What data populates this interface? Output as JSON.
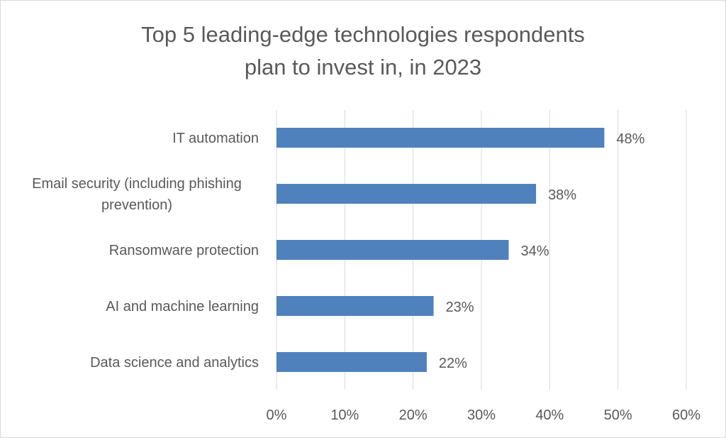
{
  "chart_data": {
    "type": "bar",
    "orientation": "horizontal",
    "title": [
      "Top 5 leading-edge technologies respondents",
      "plan to invest in, in 2023"
    ],
    "categories": [
      [
        "IT automation"
      ],
      [
        "Email security (including phishing",
        "prevention)"
      ],
      [
        "Ransomware protection"
      ],
      [
        "AI and machine learning"
      ],
      [
        "Data science and analytics"
      ]
    ],
    "values": [
      48,
      38,
      34,
      23,
      22
    ],
    "data_labels": [
      "48%",
      "38%",
      "34%",
      "23%",
      "22%"
    ],
    "xlim": [
      0,
      60
    ],
    "x_ticks": [
      0,
      10,
      20,
      30,
      40,
      50,
      60
    ],
    "x_tick_labels": [
      "0%",
      "10%",
      "20%",
      "30%",
      "40%",
      "50%",
      "60%"
    ],
    "xlabel": "",
    "ylabel": "",
    "grid": "vertical",
    "legend": "none",
    "colors": {
      "bar": "#4f81bd",
      "text": "#595959",
      "grid": "#d9d9d9"
    }
  }
}
